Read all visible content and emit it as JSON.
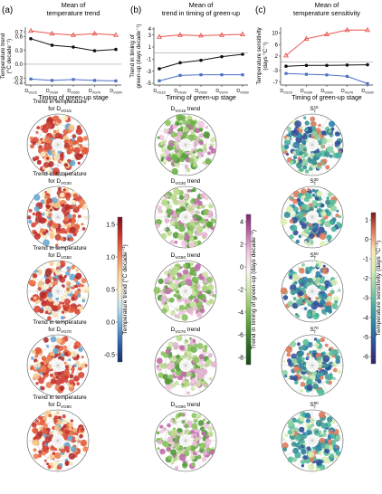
{
  "figure": {
    "panels": [
      "(a)",
      "(b)",
      "(c)"
    ]
  },
  "chart_data": [
    {
      "type": "line",
      "panel": "(a)",
      "title": "Mean of temperature trend",
      "title_lines": [
        "Mean of",
        "temperature trend"
      ],
      "xlabel": "Timing of green-up stage",
      "ylabel": "Temperature trend (°C decade⁻¹)",
      "ylabel_lines": [
        "Temperature trend",
        "(°C decade⁻¹)"
      ],
      "categories": [
        "D_VG15",
        "D_VG30",
        "D_VG50",
        "D_VG70",
        "D_VG90"
      ],
      "yticks": [
        -0.4,
        -0.3,
        0.0,
        0.3,
        0.6
      ],
      "ytick_labels": [
        "-0.4",
        "-0.3",
        "0.0",
        "0.3",
        "0.6"
      ],
      "yticks_upper": [
        0.7
      ],
      "ytick_labels_upper": [
        "0.7"
      ],
      "ylim": [
        -0.45,
        0.8
      ],
      "series": [
        {
          "values": [
            0.72,
            0.66,
            0.63,
            0.66,
            0.63
          ],
          "color": "#e8554e",
          "marker": "triangle"
        },
        {
          "values": [
            0.55,
            0.41,
            0.37,
            0.29,
            0.32
          ],
          "color": "#111111",
          "marker": "circle"
        },
        {
          "values": [
            -0.32,
            -0.35,
            -0.33,
            -0.35,
            -0.36
          ],
          "color": "#4d6fc4",
          "marker": "square"
        }
      ]
    },
    {
      "type": "line",
      "panel": "(b)",
      "title": "Mean of trend in timing of green-up",
      "title_lines": [
        "Mean of",
        "trend in timing of green-up"
      ],
      "xlabel": "Timing of green-up stage",
      "ylabel": "Trend in timing of green-up (days decade⁻¹)",
      "ylabel_lines": [
        "Trend in timing of",
        "green-up (days decade⁻¹)"
      ],
      "categories": [
        "D_VG15",
        "D_VG30",
        "D_VG50",
        "D_VG70",
        "D_VG90"
      ],
      "yticks": [
        -5,
        -3,
        -1,
        1,
        3,
        4
      ],
      "ytick_labels": [
        "-5",
        "-3",
        "-1",
        "1",
        "3",
        "4"
      ],
      "ylim": [
        -5.3,
        4.3
      ],
      "series": [
        {
          "values": [
            2.7,
            3.0,
            2.9,
            3.0,
            3.1
          ],
          "color": "#e8554e",
          "marker": "triangle"
        },
        {
          "values": [
            -2.6,
            -1.6,
            -1.2,
            -0.6,
            -0.2
          ],
          "color": "#111111",
          "marker": "circle"
        },
        {
          "values": [
            -4.6,
            -3.7,
            -3.6,
            -3.6,
            -3.6
          ],
          "color": "#4d6fc4",
          "marker": "square"
        }
      ]
    },
    {
      "type": "line",
      "panel": "(c)",
      "title": "Mean of temperature sensitivity",
      "title_lines": [
        "Mean of",
        "temperature sensitivity"
      ],
      "xlabel": "Timing of green-up stage",
      "ylabel": "Temperature sensitivity (days °C⁻¹)",
      "ylabel_lines": [
        "Temperature sensitivity",
        "(days °C⁻¹)"
      ],
      "categories": [
        "D_VG15",
        "D_VG30",
        "D_VG50",
        "D_VG70",
        "D_VG90"
      ],
      "yticks": [
        -7,
        -3,
        2,
        6,
        10
      ],
      "ytick_labels": [
        "-7",
        "-3",
        "2",
        "6",
        "10"
      ],
      "ylim": [
        -8,
        12
      ],
      "series": [
        {
          "values": [
            2.2,
            8.0,
            9.5,
            11.0,
            11.0
          ],
          "color": "#e8554e",
          "marker": "triangle"
        },
        {
          "values": [
            -1.5,
            -1.2,
            -1.2,
            -1.1,
            -1.0
          ],
          "color": "#111111",
          "marker": "circle"
        },
        {
          "values": [
            -4.0,
            -4.3,
            -4.5,
            -5.0,
            -7.5
          ],
          "color": "#4d6fc4",
          "marker": "square"
        }
      ]
    }
  ],
  "maps": {
    "col_a": [
      {
        "lines": [
          "Trend in temperature",
          "for D_VG15"
        ]
      },
      {
        "lines": [
          "Trend in temperature",
          "for D_VG30"
        ]
      },
      {
        "lines": [
          "Trend in temperature",
          "for D_VG50"
        ]
      },
      {
        "lines": [
          "Trend in temperature",
          "for D_VG70"
        ]
      },
      {
        "lines": [
          "Trend in temperature",
          "for D_VG90"
        ]
      }
    ],
    "col_b": [
      {
        "lines": [
          "D_VG15 trend"
        ]
      },
      {
        "lines": [
          "D_VG30 trend"
        ]
      },
      {
        "lines": [
          "D_VG50 trend"
        ]
      },
      {
        "lines": [
          "D_VG70 trend"
        ]
      },
      {
        "lines": [
          "D_VG90 trend"
        ]
      }
    ],
    "col_c": [
      {
        "lines": [
          "S_T^15"
        ]
      },
      {
        "lines": [
          "S_T^30"
        ]
      },
      {
        "lines": [
          "S_T^50"
        ]
      },
      {
        "lines": [
          "S_T^70"
        ]
      },
      {
        "lines": [
          "S_T^90"
        ]
      }
    ]
  },
  "colorbars": [
    {
      "label": "Temperature trend (°C decade⁻¹)",
      "ticks": [
        "1.5",
        "1.0",
        "0.5",
        "0.0",
        "-0.5"
      ],
      "colors": [
        "#7a0e1a",
        "#c9332c",
        "#ef7c4f",
        "#f9c98c",
        "#fbf1c8",
        "#bfe2ee",
        "#6aa8d3",
        "#2c62a8",
        "#1a2d6b"
      ]
    },
    {
      "label": "Trend in timing of green-up (days decade⁻¹)",
      "ticks": [
        "4",
        "2",
        "0",
        "-2",
        "-4",
        "-6",
        "-8"
      ],
      "colors": [
        "#7b2a72",
        "#c16aaa",
        "#f1c6df",
        "#f7f7f0",
        "#cfe6a9",
        "#8cc460",
        "#4f9a37",
        "#2a6a22",
        "#1a4a18"
      ]
    },
    {
      "label": "Temperature sensitivity (days °C⁻¹)",
      "ticks": [
        "1",
        "0",
        "-1",
        "-2",
        "-3",
        "-4",
        "-5",
        "-6"
      ],
      "colors": [
        "#7a1a1a",
        "#e07a5a",
        "#fae7b0",
        "#d9efb4",
        "#8fd1a3",
        "#41ae9f",
        "#2c7fa8",
        "#2f4c9a",
        "#35236b"
      ]
    }
  ]
}
